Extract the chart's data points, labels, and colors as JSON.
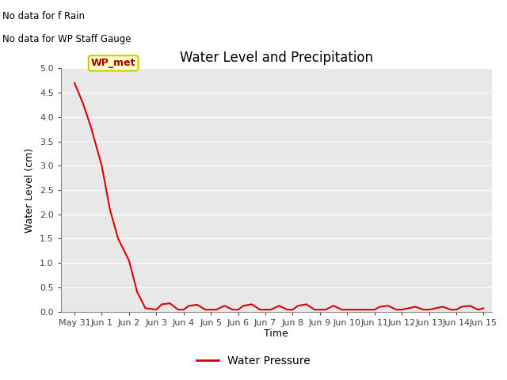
{
  "title": "Water Level and Precipitation",
  "xlabel": "Time",
  "ylabel": "Water Level (cm)",
  "ylim": [
    0.0,
    5.0
  ],
  "yticks": [
    0.0,
    0.5,
    1.0,
    1.5,
    2.0,
    2.5,
    3.0,
    3.5,
    4.0,
    4.5,
    5.0
  ],
  "bg_color": "#e8e8e8",
  "fig_color": "#ffffff",
  "line_color": "#dd0000",
  "line_label": "Water Pressure",
  "annotation_lines": [
    "No data for f Rain",
    "No data for WP Staff Gauge"
  ],
  "wp_met_label": "WP_met",
  "wp_met_box_color": "#ffffcc",
  "wp_met_text_color": "#aa0000",
  "x_data": [
    30.0,
    30.3,
    30.6,
    31.0,
    31.3,
    31.6,
    32.0,
    32.3,
    32.6,
    33.0,
    33.2,
    33.5,
    33.8,
    34.0,
    34.2,
    34.5,
    34.8,
    35.0,
    35.2,
    35.5,
    35.8,
    36.0,
    36.2,
    36.5,
    36.8,
    37.0,
    37.2,
    37.5,
    37.8,
    38.0,
    38.2,
    38.5,
    38.8,
    39.0,
    39.2,
    39.5,
    39.8,
    40.0,
    40.5,
    40.8,
    41.0,
    41.2,
    41.5,
    41.8,
    42.0,
    42.5,
    42.8,
    43.0,
    43.5,
    43.8,
    44.0,
    44.2,
    44.5,
    44.8,
    45.0
  ],
  "y_data": [
    4.7,
    4.3,
    3.8,
    3.0,
    2.1,
    1.5,
    1.05,
    0.4,
    0.07,
    0.04,
    0.15,
    0.17,
    0.04,
    0.04,
    0.12,
    0.14,
    0.04,
    0.04,
    0.04,
    0.12,
    0.04,
    0.04,
    0.12,
    0.15,
    0.04,
    0.04,
    0.04,
    0.12,
    0.04,
    0.04,
    0.12,
    0.15,
    0.04,
    0.04,
    0.04,
    0.12,
    0.04,
    0.04,
    0.04,
    0.04,
    0.04,
    0.1,
    0.12,
    0.04,
    0.04,
    0.1,
    0.04,
    0.04,
    0.1,
    0.04,
    0.04,
    0.1,
    0.12,
    0.04,
    0.07
  ],
  "xticks": [
    30,
    31,
    32,
    33,
    34,
    35,
    36,
    37,
    38,
    39,
    40,
    41,
    42,
    43,
    44,
    45
  ],
  "xtick_labels": [
    "May 31",
    "Jun 1",
    "Jun 2",
    "Jun 3",
    "Jun 4",
    "Jun 5",
    "Jun 6",
    "Jun 7",
    "Jun 8",
    "Jun 9",
    "Jun 10",
    "Jun 11",
    "Jun 12",
    "Jun 13",
    "Jun 14",
    "Jun 15"
  ],
  "xlim": [
    29.5,
    45.3
  ],
  "title_fontsize": 12,
  "axis_label_fontsize": 9,
  "tick_fontsize": 8,
  "legend_fontsize": 10
}
